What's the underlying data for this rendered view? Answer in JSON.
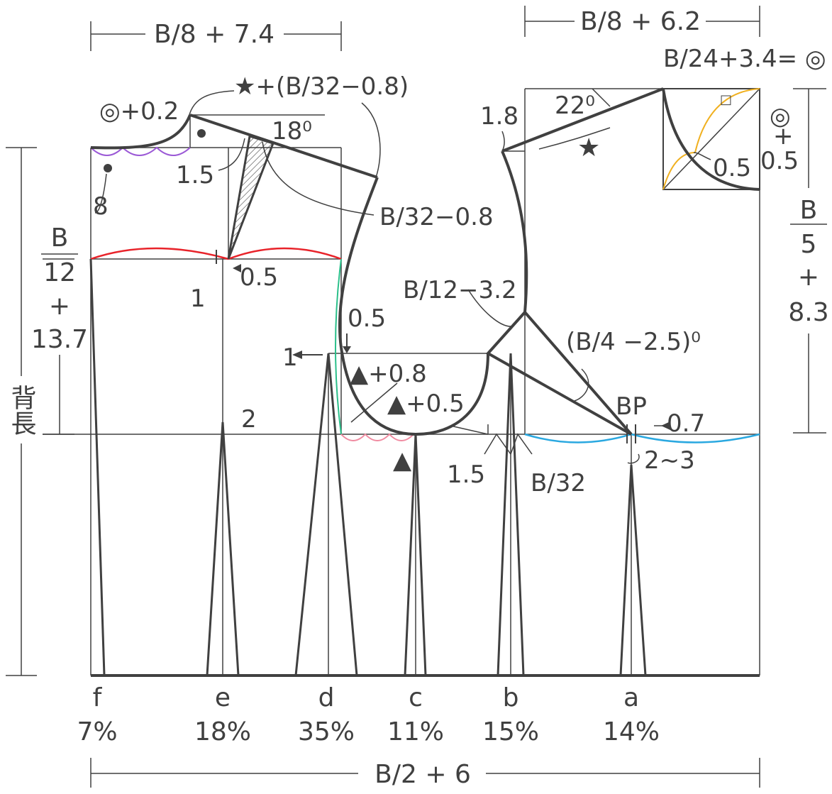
{
  "dims": {
    "top_left": "B/8 + 7.4",
    "top_right": "B/8 + 6.2",
    "bottom": "B/2 + 6",
    "back_length": "背長",
    "chest_depth": [
      "B",
      "12",
      "+",
      "13.7"
    ],
    "front_depth": [
      "B",
      "5",
      "+",
      "8.3"
    ]
  },
  "annotations": {
    "neck_back": "◎+0.2",
    "shoulder_star": "★+(B/32−0.8)",
    "angle_18": "18⁰",
    "v_1_5_a": "1.5",
    "v_8": "8",
    "b32_08": "B/32−0.8",
    "v_1": "1",
    "v_0_5_a": "0.5",
    "v_0_5_b": "0.5",
    "v_1_left": "1",
    "tri_08": "▲+0.8",
    "tri_05": "▲+0.5",
    "v_2": "2",
    "tri_plain": "▲",
    "v_1_5_b": "1.5",
    "b_32": "B/32",
    "b12_32": "B/12−3.2",
    "b4_25": "(B/4 −2.5)⁰",
    "bp": "BP",
    "v_0_7": "0.7",
    "v_2_3": "2~3",
    "v_1_8": "1.8",
    "angle_22": "22⁰",
    "star": "★",
    "b24": "B/24+3.4= ◎",
    "circ_right": "◎",
    "plus": "+",
    "v_0_5_c": "0.5",
    "v_0_5_d": "0.5",
    "square": "□"
  },
  "darts": [
    {
      "letter": "f",
      "percent": "7%"
    },
    {
      "letter": "e",
      "percent": "18%"
    },
    {
      "letter": "d",
      "percent": "35%"
    },
    {
      "letter": "c",
      "percent": "11%"
    },
    {
      "letter": "b",
      "percent": "15%"
    },
    {
      "letter": "a",
      "percent": "14%"
    }
  ],
  "colors": {
    "line": "#404040",
    "back_neck": "#9b59d6",
    "chest_line": "#e8232a",
    "armhole_back": "#2bbf8a",
    "armhole_bottom": "#f08aa0",
    "bust_line": "#2aa8e0",
    "front_neck": "#f0b020"
  }
}
